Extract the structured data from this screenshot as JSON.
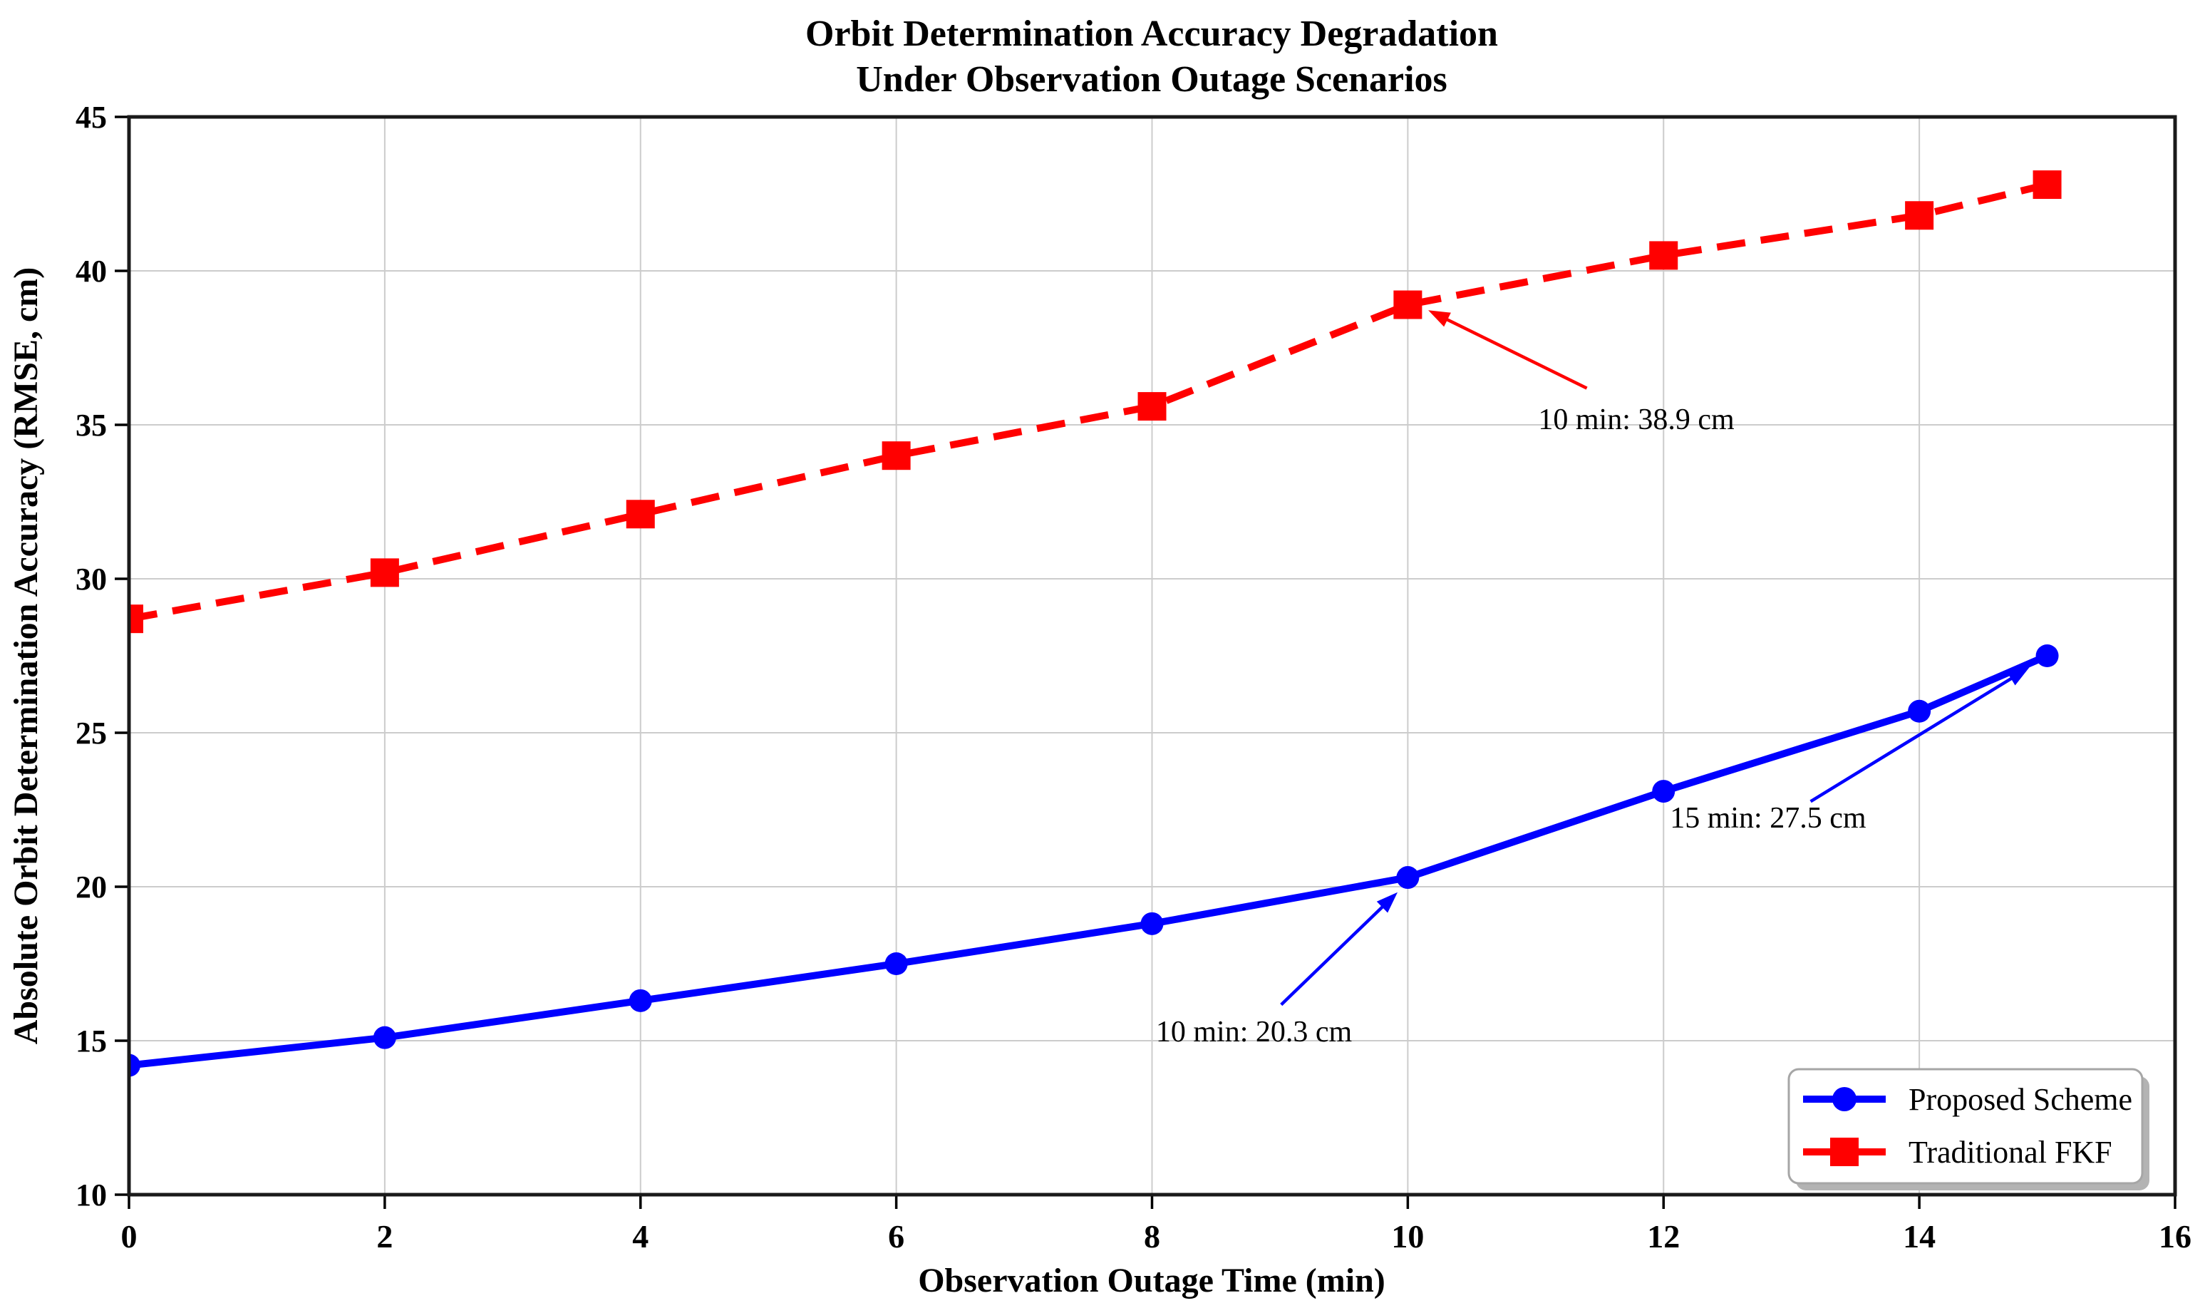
{
  "figure": {
    "title_line1": "Orbit Determination Accuracy Degradation",
    "title_line2": "Under Observation Outage Scenarios"
  },
  "chart_data": {
    "type": "line",
    "title": "Orbit Determination Accuracy Degradation\nUnder Observation Outage Scenarios",
    "xlabel": "Observation Outage Time (min)",
    "ylabel": "Absolute Orbit Determination Accuracy (RMSE, cm)",
    "xlim": [
      0,
      16
    ],
    "ylim": [
      10,
      45
    ],
    "x_ticks": [
      0,
      2,
      4,
      6,
      8,
      10,
      12,
      14,
      16
    ],
    "y_ticks": [
      10,
      15,
      20,
      25,
      30,
      35,
      40,
      45
    ],
    "grid": true,
    "grid_color": "#cccccc",
    "legend_position": "lower right",
    "x": [
      0,
      2,
      4,
      6,
      8,
      10,
      12,
      14,
      15
    ],
    "series": [
      {
        "name": "Proposed Scheme",
        "color": "#0000ff",
        "marker": "circle",
        "line_style": "solid",
        "values": [
          14.2,
          15.1,
          16.3,
          17.5,
          18.8,
          20.3,
          23.1,
          25.7,
          27.5
        ]
      },
      {
        "name": "Traditional FKF",
        "color": "#ff0000",
        "marker": "square",
        "line_style": "dashed",
        "values": [
          28.7,
          30.2,
          32.1,
          34.0,
          35.6,
          38.9,
          40.5,
          41.8,
          42.8
        ]
      }
    ],
    "annotations": [
      {
        "text": "10 min: 38.9 cm",
        "target_x": 10,
        "target_y": 38.9,
        "arrow_color": "#ff0000",
        "arrow_tail": [
          11.4,
          36.19
        ],
        "arrow_tip": [
          10.16,
          38.72
        ],
        "text_pos": [
          11.02,
          35.18
        ]
      },
      {
        "text": "10 min: 20.3 cm",
        "target_x": 10,
        "target_y": 20.3,
        "arrow_color": "#0000ff",
        "arrow_tail": [
          9.01,
          16.17
        ],
        "arrow_tip": [
          9.92,
          19.82
        ],
        "text_pos": [
          8.03,
          15.3
        ]
      },
      {
        "text": "15 min: 27.5 cm",
        "target_x": 15,
        "target_y": 27.5,
        "arrow_color": "#0000ff",
        "arrow_tail": [
          13.15,
          22.77
        ],
        "arrow_tip": [
          14.86,
          27.12
        ],
        "text_pos": [
          12.05,
          22.25
        ]
      }
    ]
  }
}
